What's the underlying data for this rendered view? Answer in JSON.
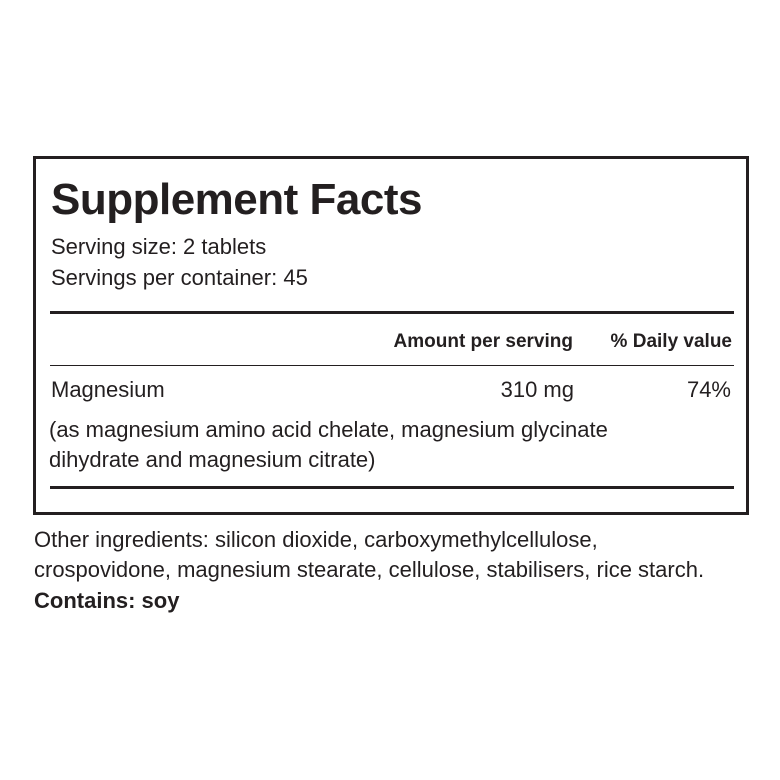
{
  "title": "Supplement Facts",
  "serving_size": "Serving size: 2 tablets",
  "servings_per_container": "Servings per container: 45",
  "columns": {
    "amount": "Amount per serving",
    "daily_value": "% Daily value"
  },
  "nutrients": [
    {
      "name": "Magnesium",
      "amount": "310 mg",
      "daily_value": "74%",
      "note_lines": [
        "(as magnesium amino acid chelate, magnesium glycinate",
        "dihydrate and magnesium citrate)"
      ]
    }
  ],
  "other_ingredients": [
    "Other ingredients: silicon dioxide, carboxymethylcellulose,",
    "crospovidone, magnesium stearate, cellulose, stabilisers, rice starch."
  ],
  "contains": "Contains: soy"
}
